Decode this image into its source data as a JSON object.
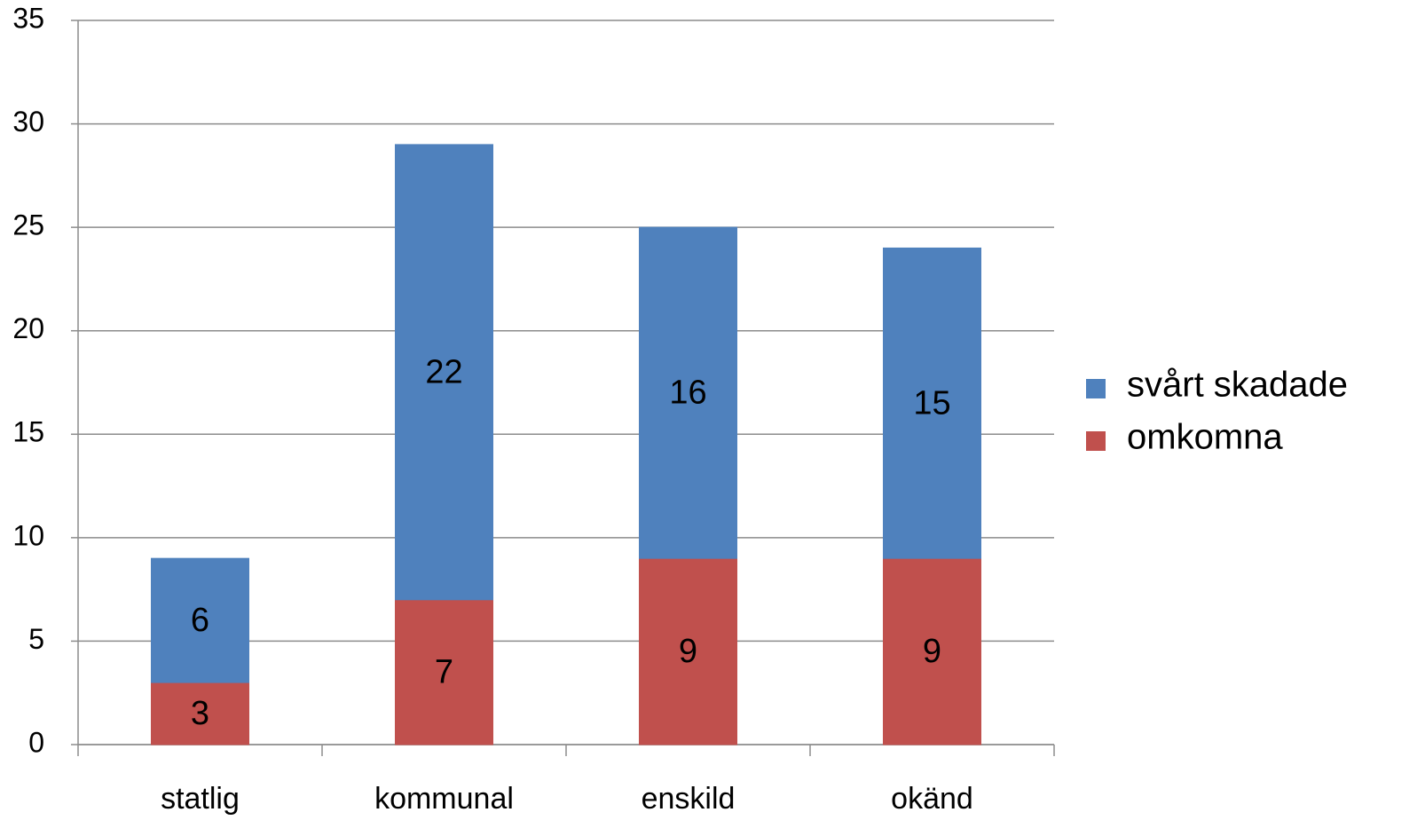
{
  "chart_data": {
    "type": "bar",
    "stacked": true,
    "categories": [
      "statlig",
      "kommunal",
      "enskild",
      "okänd"
    ],
    "series": [
      {
        "name": "omkomna",
        "color": "#c0504d",
        "values": [
          3,
          7,
          9,
          9
        ]
      },
      {
        "name": "svårt skadade",
        "color": "#4f81bd",
        "values": [
          6,
          22,
          16,
          15
        ]
      }
    ],
    "ylim": [
      0,
      35
    ],
    "yticks": [
      0,
      5,
      10,
      15,
      20,
      25,
      30,
      35
    ],
    "grid": true,
    "legend": "right"
  }
}
